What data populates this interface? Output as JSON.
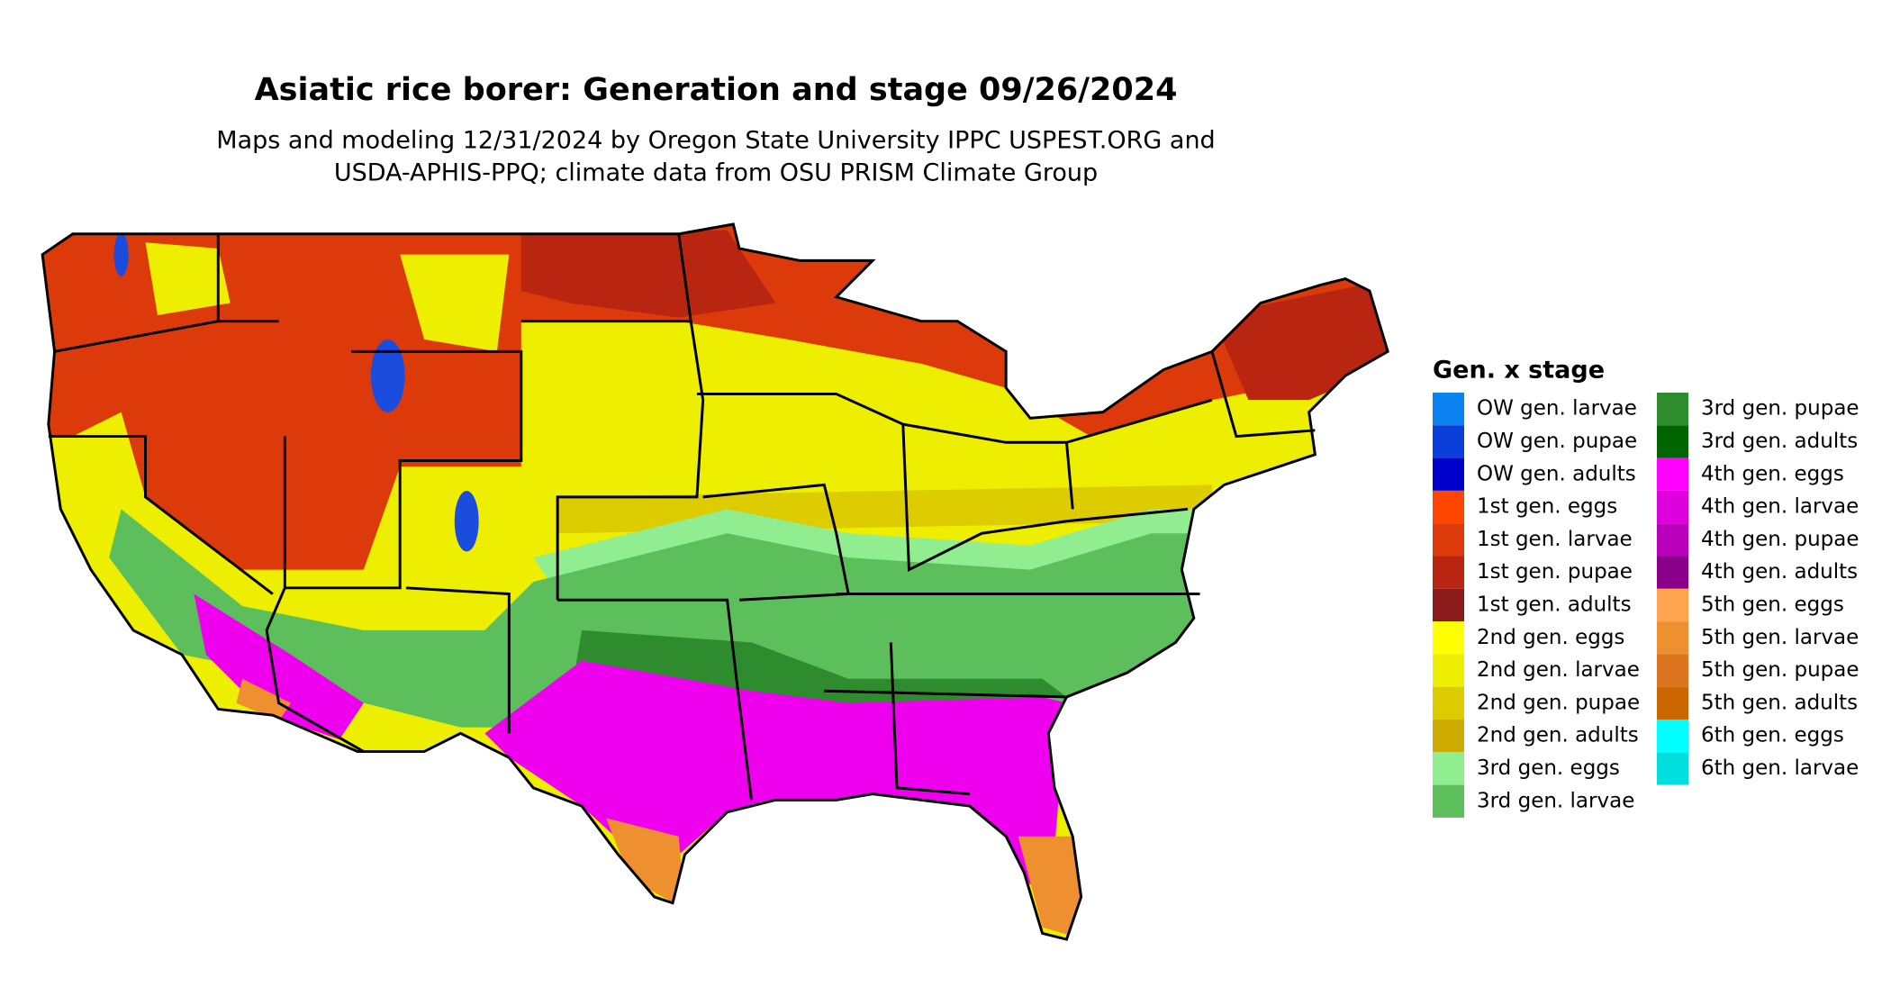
{
  "title": "Asiatic rice borer: Generation and stage 09/26/2024",
  "subtitle": [
    "Maps and modeling 12/31/2024 by Oregon State University IPPC USPEST.ORG and",
    "USDA-APHIS-PPQ; climate data from OSU PRISM Climate Group"
  ],
  "legend": {
    "title": "Gen. x stage",
    "items": [
      {
        "label": "OW gen. larvae",
        "color": "#0a82ef"
      },
      {
        "label": "OW gen. pupae",
        "color": "#0a3fdc"
      },
      {
        "label": "OW gen. adults",
        "color": "#0000cc"
      },
      {
        "label": "1st gen. eggs",
        "color": "#ff4500"
      },
      {
        "label": "1st gen. larvae",
        "color": "#dd3a0c"
      },
      {
        "label": "1st gen. pupae",
        "color": "#b82510"
      },
      {
        "label": "1st gen. adults",
        "color": "#8b1a1a"
      },
      {
        "label": "2nd gen. eggs",
        "color": "#ffff00"
      },
      {
        "label": "2nd gen. larvae",
        "color": "#eeee00"
      },
      {
        "label": "2nd gen. pupae",
        "color": "#ddcc00"
      },
      {
        "label": "2nd gen. adults",
        "color": "#ccaa00"
      },
      {
        "label": "3rd gen. eggs",
        "color": "#90ee90"
      },
      {
        "label": "3rd gen. larvae",
        "color": "#5cbf5c"
      },
      {
        "label": "3rd gen. pupae",
        "color": "#2e8b2e"
      },
      {
        "label": "3rd gen. adults",
        "color": "#006400"
      },
      {
        "label": "4th gen. eggs",
        "color": "#ff00ff"
      },
      {
        "label": "4th gen. larvae",
        "color": "#dd00dd"
      },
      {
        "label": "4th gen. pupae",
        "color": "#bb00bb"
      },
      {
        "label": "4th gen. adults",
        "color": "#8b008b"
      },
      {
        "label": "5th gen. eggs",
        "color": "#ffa54f"
      },
      {
        "label": "5th gen. larvae",
        "color": "#ee9030"
      },
      {
        "label": "5th gen. pupae",
        "color": "#dd7520"
      },
      {
        "label": "5th gen. adults",
        "color": "#cc6600"
      },
      {
        "label": "6th gen. eggs",
        "color": "#00ffff"
      },
      {
        "label": "6th gen. larvae",
        "color": "#00dddd"
      }
    ]
  }
}
